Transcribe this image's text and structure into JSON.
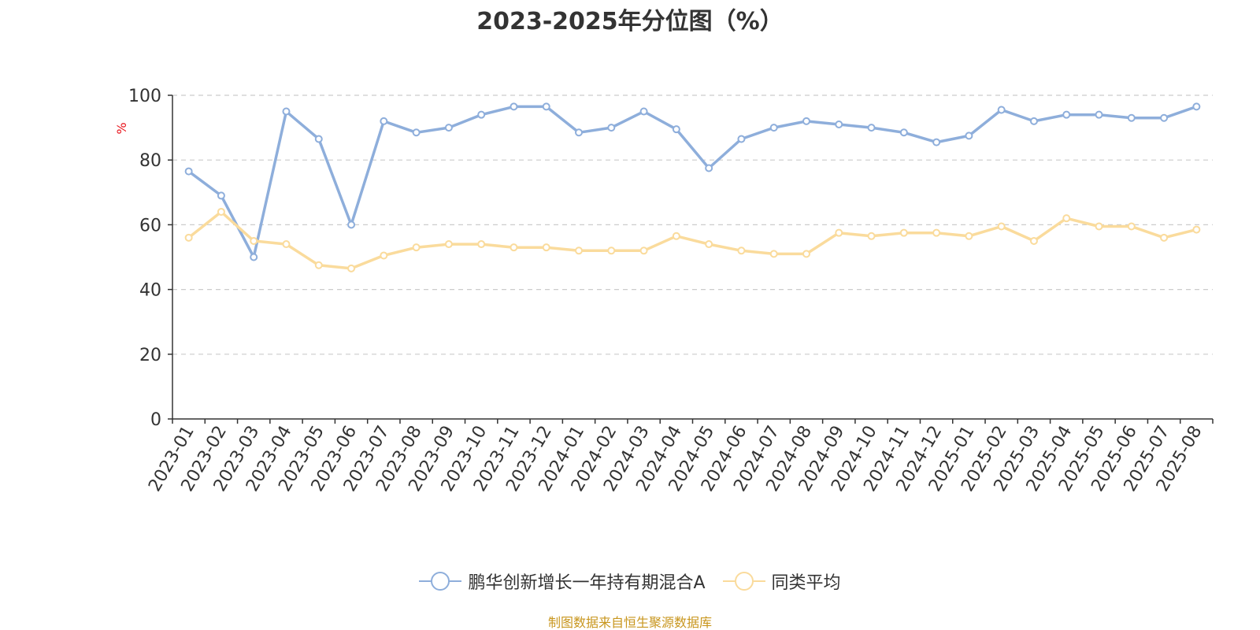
{
  "chart_data": {
    "type": "line",
    "title": "2023-2025年分位图（%）",
    "ylabel": "%",
    "ylim": [
      0,
      100
    ],
    "yticks": [
      "0",
      "20",
      "40",
      "60",
      "80",
      "100"
    ],
    "grid": true,
    "legend_position": "bottom",
    "categories": [
      "2023-01",
      "2023-02",
      "2023-03",
      "2023-04",
      "2023-05",
      "2023-06",
      "2023-07",
      "2023-08",
      "2023-09",
      "2023-10",
      "2023-11",
      "2023-12",
      "2024-01",
      "2024-02",
      "2024-03",
      "2024-04",
      "2024-05",
      "2024-06",
      "2024-07",
      "2024-08",
      "2024-09",
      "2024-10",
      "2024-11",
      "2024-12",
      "2025-01",
      "2025-02",
      "2025-03",
      "2025-04",
      "2025-05",
      "2025-06",
      "2025-07",
      "2025-08"
    ],
    "series": [
      {
        "name": "鹏华创新增长一年持有期混合A",
        "color": "#8eaedb",
        "values": [
          76.5,
          69,
          50,
          95,
          86.5,
          60,
          92,
          88.5,
          90,
          94,
          96.5,
          96.5,
          88.5,
          90,
          95,
          89.5,
          77.5,
          86.5,
          90,
          92,
          91,
          90,
          88.5,
          85.5,
          87.5,
          95.5,
          92,
          94,
          94,
          93,
          93,
          96.5
        ]
      },
      {
        "name": "同类平均",
        "color": "#fadb9c",
        "values": [
          56,
          64,
          55,
          54,
          47.5,
          46.5,
          50.5,
          53,
          54,
          54,
          53,
          53,
          52,
          52,
          52,
          56.5,
          54,
          52,
          51,
          51,
          57.5,
          56.5,
          57.5,
          57.5,
          56.5,
          59.5,
          55,
          62,
          59.5,
          59.5,
          56,
          58.5
        ]
      }
    ]
  },
  "footer": "制图数据来自恒生聚源数据库"
}
